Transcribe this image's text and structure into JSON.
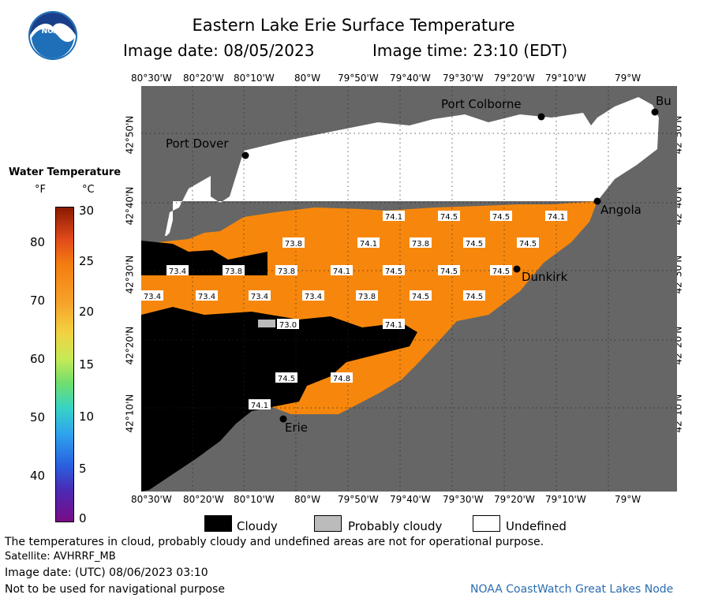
{
  "header": {
    "title": "Eastern Lake Erie Surface Temperature",
    "image_date": "Image date: 08/05/2023",
    "image_time": "Image time: 23:10 (EDT)"
  },
  "logo": {
    "text": "NOAA"
  },
  "map": {
    "x_ticks": [
      "80°30'W",
      "80°20'W",
      "80°10'W",
      "80°W",
      "79°50'W",
      "79°40'W",
      "79°30'W",
      "79°20'W",
      "79°10'W",
      "79°W"
    ],
    "y_ticks": [
      "42°50'N",
      "42°40'N",
      "42°30'N",
      "42°20'N",
      "42°10'N"
    ],
    "places": [
      {
        "name": "Port Colborne"
      },
      {
        "name": "Port Dover"
      },
      {
        "name": "Angola"
      },
      {
        "name": "Dunkirk"
      },
      {
        "name": "Erie"
      },
      {
        "name": "Bu"
      }
    ],
    "temperature_labels": [
      "74.1",
      "74.5",
      "74.5",
      "74.1",
      "73.8",
      "74.1",
      "73.8",
      "74.5",
      "74.5",
      "73.4",
      "73.8",
      "73.8",
      "74.1",
      "74.5",
      "74.5",
      "74.5",
      "73.4",
      "73.4",
      "73.4",
      "73.4",
      "73.8",
      "74.5",
      "74.5",
      "73.0",
      "74.1",
      "74.5",
      "74.8",
      "74.1"
    ],
    "colors": {
      "land": "#666666",
      "water_warm": "#f7870c",
      "cloud": "#000000",
      "undefined": "#ffffff",
      "probably_cloudy": "#bbbbbb"
    }
  },
  "legend": {
    "title": "Water Temperature",
    "unit_f": "°F",
    "unit_c": "°C",
    "f_ticks": [
      "80",
      "70",
      "60",
      "50",
      "40"
    ],
    "c_ticks": [
      "30",
      "25",
      "20",
      "15",
      "10",
      "5",
      "0"
    ]
  },
  "key": {
    "cloudy": "Cloudy",
    "probably_cloudy": "Probably cloudy",
    "undefined": "Undefined"
  },
  "footer": {
    "disclaimer": "The temperatures in cloud, probably cloudy and undefined areas are not for operational purpose.",
    "satellite": "Satellite: AVHRRF_MB",
    "utc_date": "Image date: (UTC) 08/06/2023  03:10",
    "navigation": "Not to be used for navigational purpose",
    "credit": "NOAA CoastWatch Great Lakes Node"
  }
}
